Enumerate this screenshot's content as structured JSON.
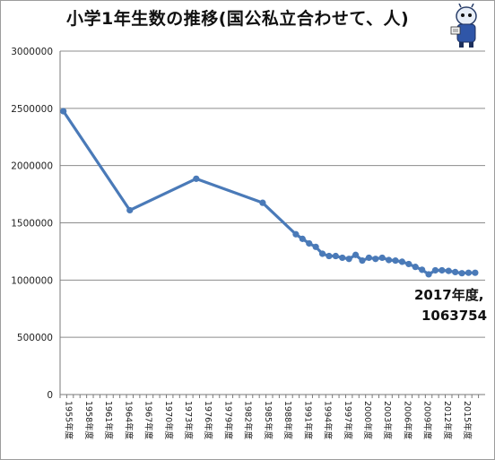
{
  "chart_data": {
    "type": "line",
    "title": "小学1年生数の推移(国公私立合わせて、人)",
    "xlabel": "",
    "ylabel": "",
    "ylim": [
      0,
      3000000
    ],
    "yticks": [
      0,
      500000,
      1000000,
      1500000,
      2000000,
      2500000,
      3000000
    ],
    "ytick_labels": [
      "0",
      "500000",
      "1000000",
      "1500000",
      "2000000",
      "2500000",
      "3000000"
    ],
    "x_range": [
      1955,
      2018
    ],
    "xtick_labels": [
      "1955年度",
      "1958年度",
      "1961年度",
      "1964年度",
      "1967年度",
      "1970年度",
      "1973年度",
      "1976年度",
      "1979年度",
      "1982年度",
      "1985年度",
      "1988年度",
      "1991年度",
      "1994年度",
      "1997年度",
      "2000年度",
      "2003年度",
      "2006年度",
      "2009年度",
      "2012年度",
      "2015年度"
    ],
    "grid": true,
    "color": "#4a7ab8",
    "series": [
      {
        "name": "",
        "x": [
          1955,
          1965,
          1975,
          1985,
          1990,
          1991,
          1992,
          1993,
          1994,
          1995,
          1996,
          1997,
          1998,
          1999,
          2000,
          2001,
          2002,
          2003,
          2004,
          2005,
          2006,
          2007,
          2008,
          2009,
          2010,
          2011,
          2012,
          2013,
          2014,
          2015,
          2016,
          2017
        ],
        "values": [
          2475000,
          1610000,
          1885000,
          1675000,
          1400000,
          1360000,
          1320000,
          1290000,
          1230000,
          1210000,
          1210000,
          1195000,
          1185000,
          1220000,
          1170000,
          1195000,
          1185000,
          1195000,
          1175000,
          1170000,
          1160000,
          1140000,
          1115000,
          1090000,
          1050000,
          1085000,
          1085000,
          1080000,
          1070000,
          1060000,
          1063754,
          1063754
        ]
      }
    ],
    "annotation": {
      "line1": "2017年度,",
      "line2": "1063754"
    }
  }
}
